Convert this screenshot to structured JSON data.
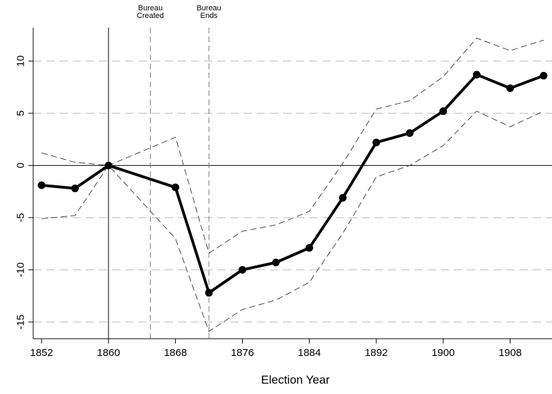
{
  "chart_data": {
    "type": "line",
    "title": "",
    "xlabel": "Election Year",
    "ylabel": "",
    "xlim": [
      1851,
      1913
    ],
    "ylim": [
      -16.6,
      13.2
    ],
    "x_ticks": [
      1852,
      1860,
      1868,
      1876,
      1884,
      1892,
      1900,
      1908
    ],
    "y_ticks": [
      10,
      5,
      0,
      -5,
      -10,
      -15
    ],
    "grid": "horizontal dashed",
    "series": [
      {
        "role": "estimate",
        "x": [
          1852,
          1856,
          1860,
          1868,
          1872,
          1876,
          1880,
          1884,
          1888,
          1892,
          1896,
          1900,
          1904,
          1908,
          1912
        ],
        "values": [
          -1.9,
          -2.2,
          0.0,
          -2.1,
          -12.2,
          -10.0,
          -9.3,
          -7.9,
          -3.1,
          2.2,
          3.1,
          5.2,
          8.7,
          7.4,
          8.6
        ]
      },
      {
        "role": "upper-ci",
        "x": [
          1852,
          1856,
          1860,
          1868,
          1872,
          1876,
          1880,
          1884,
          1888,
          1892,
          1896,
          1900,
          1904,
          1908,
          1912
        ],
        "values": [
          1.2,
          0.3,
          0.0,
          2.7,
          -8.4,
          -6.3,
          -5.7,
          -4.4,
          0.2,
          5.4,
          6.2,
          8.5,
          12.2,
          11.0,
          12.0
        ]
      },
      {
        "role": "lower-ci",
        "x": [
          1852,
          1856,
          1860,
          1868,
          1872,
          1876,
          1880,
          1884,
          1888,
          1892,
          1896,
          1900,
          1904,
          1908,
          1912
        ],
        "values": [
          -5.1,
          -4.8,
          0.0,
          -7.0,
          -15.9,
          -13.8,
          -12.9,
          -11.2,
          -6.5,
          -1.1,
          0.0,
          1.9,
          5.2,
          3.7,
          5.2
        ]
      }
    ],
    "reference_lines": {
      "horizontal_solid_at": 0,
      "vertical": [
        {
          "x": 1860,
          "style": "solid",
          "label_lines": []
        },
        {
          "x": 1865,
          "style": "dashed",
          "label_lines": [
            "Bureau",
            "Created"
          ]
        },
        {
          "x": 1872,
          "style": "dashed",
          "label_lines": [
            "Bureau",
            "Ends"
          ]
        }
      ]
    },
    "colors": {
      "line": "#000000",
      "ci": "#444444",
      "grid": "#cfcfcf"
    }
  }
}
